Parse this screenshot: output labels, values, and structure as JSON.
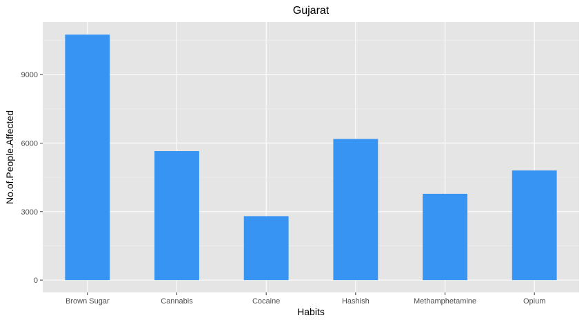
{
  "chart_data": {
    "type": "bar",
    "title": "Gujarat",
    "xlabel": "Habits",
    "ylabel": "No.of.People.Affected",
    "categories": [
      "Brown Sugar",
      "Cannabis",
      "Cocaine",
      "Hashish",
      "Methamphetamine",
      "Opium"
    ],
    "values": [
      10750,
      5650,
      2800,
      6180,
      3780,
      4800
    ],
    "yticks": [
      0,
      3000,
      6000,
      9000
    ],
    "ylim": [
      -540,
      11300
    ],
    "grid": true,
    "legend": "none",
    "colors": {
      "bar": "#3794F2",
      "panel": "#E5E5E5",
      "grid_major": "#FFFFFF",
      "grid_minor": "#F2F2F2",
      "tick_text": "#4D4D4D",
      "tick_mark": "#333333"
    }
  }
}
